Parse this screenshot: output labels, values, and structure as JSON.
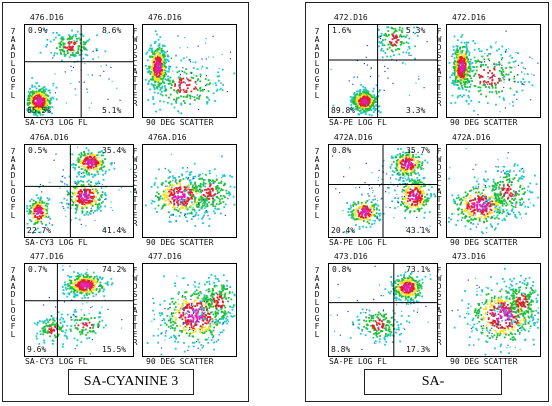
{
  "panels": [
    {
      "caption": "SA-CYANINE 3",
      "rows": [
        {
          "left": {
            "file": "476.D16",
            "q_ul": "0.9%",
            "q_ur": "8.6%",
            "q_ll": "85.5%",
            "q_lr": "5.1%",
            "xlabel": "SA-CY3 LOG FL",
            "ylabel": "7AAD LOG FL"
          },
          "right": {
            "file": "476.D16",
            "xlabel": "90 DEG SCATTER",
            "ylabel": "FWD SCATTER"
          }
        },
        {
          "left": {
            "file": "476A.D16",
            "q_ul": "0.5%",
            "q_ur": "35.4%",
            "q_ll": "22.7%",
            "q_lr": "41.4%",
            "xlabel": "SA-CY3 LOG FL",
            "ylabel": "7AAD LOG FL"
          },
          "right": {
            "file": "476A.D16",
            "xlabel": "90 DEG SCATTER",
            "ylabel": "FWD SCATTER"
          }
        },
        {
          "left": {
            "file": "477.D16",
            "q_ul": "0.7%",
            "q_ur": "74.2%",
            "q_ll": "9.6%",
            "q_lr": "15.5%",
            "xlabel": "SA-CY3 LOG FL",
            "ylabel": "7AAD LOG FL"
          },
          "right": {
            "file": "477.D16",
            "xlabel": "90 DEG SCATTER",
            "ylabel": "FWD SCATTER"
          }
        }
      ]
    },
    {
      "caption": "SA-",
      "rows": [
        {
          "left": {
            "file": "472.D16",
            "q_ul": "1.6%",
            "q_ur": "5.3%",
            "q_ll": "89.8%",
            "q_lr": "3.3%",
            "xlabel": "SA-PE LOG FL",
            "ylabel": "7AAD LOG FL"
          },
          "right": {
            "file": "472.D16",
            "xlabel": "90 DEG SCATTER",
            "ylabel": "FWD SCATTER"
          }
        },
        {
          "left": {
            "file": "472A.D16",
            "q_ul": "0.8%",
            "q_ur": "35.7%",
            "q_ll": "20.4%",
            "q_lr": "43.1%",
            "xlabel": "SA-PE LOG FL",
            "ylabel": "7AAD LOG FL"
          },
          "right": {
            "file": "472A.D16",
            "xlabel": "90 DEG SCATTER",
            "ylabel": "FWD SCATTER"
          }
        },
        {
          "left": {
            "file": "473.D16",
            "q_ul": "0.8%",
            "q_ur": "73.1%",
            "q_ll": "8.8%",
            "q_lr": "17.3%",
            "xlabel": "SA-PE LOG FL",
            "ylabel": "7AAD LOG FL"
          },
          "right": {
            "file": "473.D16",
            "xlabel": "90 DEG SCATTER",
            "ylabel": "FWD SCATTER"
          }
        }
      ]
    }
  ],
  "colors": {
    "blue": "#1f3fd8",
    "cyan": "#22c8c8",
    "green": "#1fbf3a",
    "red": "#e0202a",
    "yellow": "#f2e21f",
    "magenta": "#e01fb0"
  }
}
